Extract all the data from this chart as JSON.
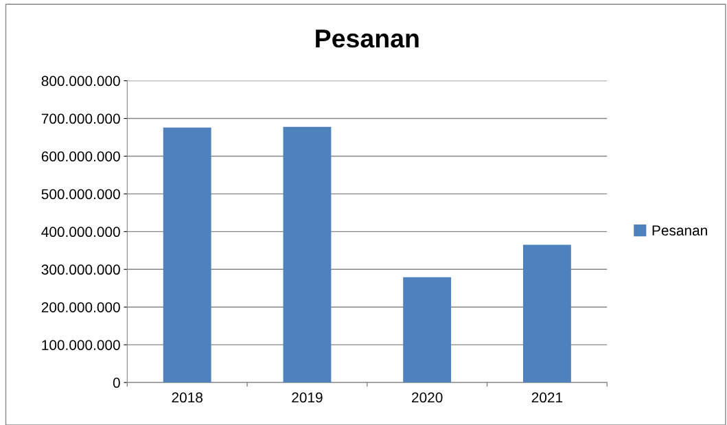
{
  "chart_data": {
    "type": "bar",
    "title": "Pesanan",
    "categories": [
      "2018",
      "2019",
      "2020",
      "2021"
    ],
    "series": [
      {
        "name": "Pesanan",
        "color": "#4f81bd",
        "values": [
          676000000,
          678000000,
          279000000,
          365000000
        ]
      }
    ],
    "ylim": [
      0,
      800000000
    ],
    "yticks": [
      0,
      {
        "value": 100000000,
        "label": "100.000.000"
      },
      {
        "value": 200000000,
        "label": "200.000.000"
      },
      {
        "value": 300000000,
        "label": "300.000.000"
      },
      {
        "value": 400000000,
        "label": "400.000.000"
      },
      {
        "value": 500000000,
        "label": "500.000.000"
      },
      {
        "value": 600000000,
        "label": "600.000.000"
      },
      {
        "value": 700000000,
        "label": "700.000.000"
      },
      {
        "value": 800000000,
        "label": "800.000.000"
      }
    ],
    "grid": "y",
    "legend": "right"
  }
}
